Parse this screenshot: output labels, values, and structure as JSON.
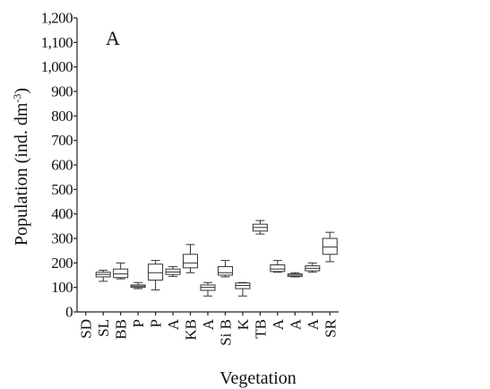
{
  "chart_data": {
    "type": "box",
    "panel_label": "A",
    "xlabel": "Vegetation",
    "ylabel": "Population (ind. dm",
    "ylabel_sup": "-3",
    "ylabel_end": ")",
    "ylim": [
      0,
      1200
    ],
    "ytick_values": [
      0,
      100,
      200,
      300,
      400,
      500,
      600,
      700,
      800,
      900,
      1000,
      1100,
      1200
    ],
    "ytick_labels": [
      "0",
      "100",
      "200",
      "300",
      "400",
      "500",
      "600",
      "700",
      "800",
      "900",
      "1,000",
      "1,100",
      "1,200"
    ],
    "categories": [
      "SD",
      "SL",
      "BB",
      "P",
      "P",
      "A",
      "KB",
      "A",
      "Si B",
      "K",
      "TB",
      "A",
      "A",
      "A",
      "SR"
    ],
    "boxes": [
      null,
      {
        "min": 125,
        "q1": 143,
        "median": 153,
        "q3": 162,
        "max": 170
      },
      {
        "min": 135,
        "q1": 140,
        "median": 155,
        "q3": 175,
        "max": 200
      },
      {
        "min": 95,
        "q1": 100,
        "median": 105,
        "q3": 110,
        "max": 120
      },
      {
        "min": 90,
        "q1": 130,
        "median": 160,
        "q3": 195,
        "max": 210
      },
      {
        "min": 145,
        "q1": 153,
        "median": 163,
        "q3": 175,
        "max": 185
      },
      {
        "min": 160,
        "q1": 180,
        "median": 200,
        "q3": 235,
        "max": 275
      },
      {
        "min": 65,
        "q1": 88,
        "median": 100,
        "q3": 110,
        "max": 120
      },
      {
        "min": 143,
        "q1": 150,
        "median": 160,
        "q3": 185,
        "max": 210
      },
      {
        "min": 65,
        "q1": 95,
        "median": 108,
        "q3": 118,
        "max": 120
      },
      {
        "min": 318,
        "q1": 330,
        "median": 345,
        "q3": 358,
        "max": 373
      },
      {
        "min": 162,
        "q1": 165,
        "median": 175,
        "q3": 192,
        "max": 210
      },
      {
        "min": 143,
        "q1": 145,
        "median": 150,
        "q3": 155,
        "max": 160
      },
      {
        "min": 162,
        "q1": 168,
        "median": 178,
        "q3": 188,
        "max": 200
      },
      {
        "min": 205,
        "q1": 235,
        "median": 265,
        "q3": 300,
        "max": 325
      }
    ],
    "grid": false,
    "legend": "none"
  }
}
